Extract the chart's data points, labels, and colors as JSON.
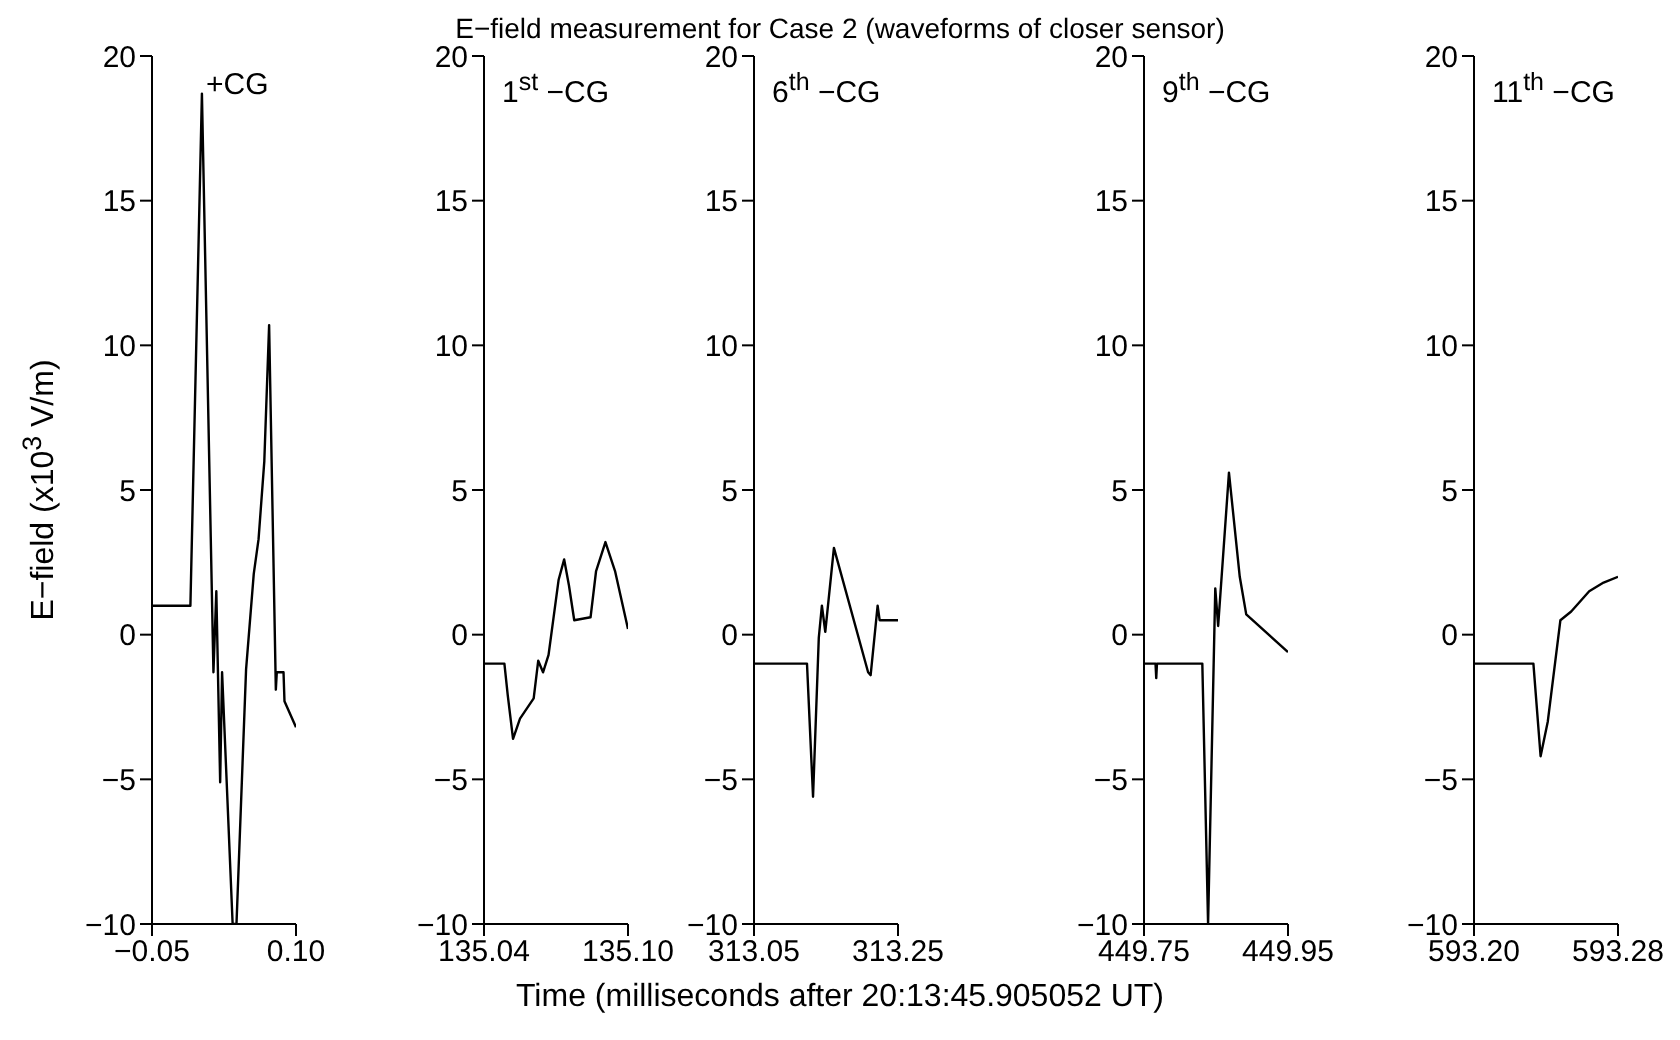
{
  "chart_data": [
    {
      "type": "line",
      "ylabel": "E−field (x10$^{3}$ V/m)",
      "annotations": [
        "+CG"
      ],
      "xlim": [
        -0.05,
        0.1
      ],
      "xticks": [
        -0.05,
        {
          "value": 0.1,
          "label": "0.10"
        }
      ],
      "ylim": [
        -10,
        20
      ],
      "yticks": [
        -10,
        -5,
        0,
        5,
        10,
        15,
        20
      ],
      "series": [
        {
          "color": "#000000",
          "x": [
            -0.05,
            -0.01,
            0.002,
            0.014,
            0.017,
            0.021,
            0.023,
            0.034,
            0.038,
            0.048,
            0.056,
            0.061,
            0.067,
            0.072,
            0.079,
            0.08,
            0.087,
            0.088,
            0.1
          ],
          "values": [
            1,
            1,
            18.7,
            -1.3,
            1.5,
            -5.1,
            -1.3,
            -10,
            -10,
            -1.2,
            2.1,
            3.3,
            6,
            10.7,
            -1.9,
            -1.3,
            -1.3,
            -2.3,
            -3.2
          ]
        }
      ]
    },
    {
      "type": "line",
      "annotations": [
        "1$^{st}$ −CG"
      ],
      "xlim": [
        135.04,
        135.1
      ],
      "xticks": [
        135.04,
        {
          "value": 135.1,
          "label": "135.10"
        }
      ],
      "ylim": [
        -10,
        20
      ],
      "yticks": [
        -10,
        -5,
        0,
        5,
        10,
        15,
        20
      ],
      "series": [
        {
          "color": "#000000",
          "x": [
            135.04,
            135.0485,
            135.0499,
            135.0521,
            135.055,
            135.0607,
            135.0626,
            135.0646,
            135.0669,
            135.0711,
            135.0734,
            135.0754,
            135.0776,
            135.0844,
            135.0867,
            135.0906,
            135.0946,
            135.1
          ],
          "values": [
            -1,
            -1,
            -2.1,
            -3.6,
            -2.9,
            -2.2,
            -0.9,
            -1.3,
            -0.7,
            1.9,
            2.6,
            1.7,
            0.5,
            0.6,
            2.2,
            3.2,
            2.2,
            0.2
          ]
        }
      ]
    },
    {
      "type": "line",
      "title": "E−field measurement for Case 2 (waveforms of closer sensor)",
      "xlabel": "Time (milliseconds after 20:13:45.905052 UT)",
      "annotations": [
        "6$^{th}$ −CG"
      ],
      "xlim": [
        313.05,
        313.25
      ],
      "xticks": [
        313.05,
        313.25
      ],
      "ylim": [
        -10,
        20
      ],
      "yticks": [
        -10,
        -5,
        0,
        5,
        10,
        15,
        20
      ],
      "series": [
        {
          "color": "#000000",
          "x": [
            313.05,
            313.1236,
            313.132,
            313.14,
            313.1443,
            313.149,
            313.161,
            313.2085,
            313.212,
            313.2217,
            313.2245,
            313.25
          ],
          "values": [
            -1,
            -1,
            -5.6,
            -0.1,
            1,
            0.1,
            3,
            -1.3,
            -1.4,
            1,
            0.5,
            0.5
          ]
        }
      ]
    },
    {
      "type": "line",
      "annotations": [
        "9$^{th}$ −CG"
      ],
      "xlim": [
        449.75,
        449.95
      ],
      "xticks": [
        449.75,
        449.95
      ],
      "ylim": [
        -10,
        20
      ],
      "yticks": [
        -10,
        -5,
        0,
        5,
        10,
        15,
        20
      ],
      "series": [
        {
          "color": "#000000",
          "x": [
            449.75,
            449.766,
            449.767,
            449.768,
            449.831,
            449.839,
            449.849,
            449.853,
            449.868,
            449.883,
            449.892,
            449.95
          ],
          "values": [
            -1,
            -1,
            -1.5,
            -1,
            -1,
            -10,
            1.6,
            0.3,
            5.6,
            2,
            0.7,
            -0.6
          ]
        }
      ]
    },
    {
      "type": "line",
      "annotations": [
        "11$^{th}$ −CG"
      ],
      "xlim": [
        593.2,
        593.28
      ],
      "xticks": [
        {
          "value": 593.2,
          "label": "593.20"
        },
        593.28
      ],
      "ylim": [
        -10,
        20
      ],
      "yticks": [
        -10,
        -5,
        0,
        5,
        10,
        15,
        20
      ],
      "series": [
        {
          "color": "#000000",
          "x": [
            593.2,
            593.233,
            593.237,
            593.241,
            593.248,
            593.254,
            593.264,
            593.272,
            593.28
          ],
          "values": [
            -1,
            -1,
            -4.2,
            -3,
            0.5,
            0.8,
            1.5,
            1.8,
            2
          ]
        }
      ]
    }
  ]
}
